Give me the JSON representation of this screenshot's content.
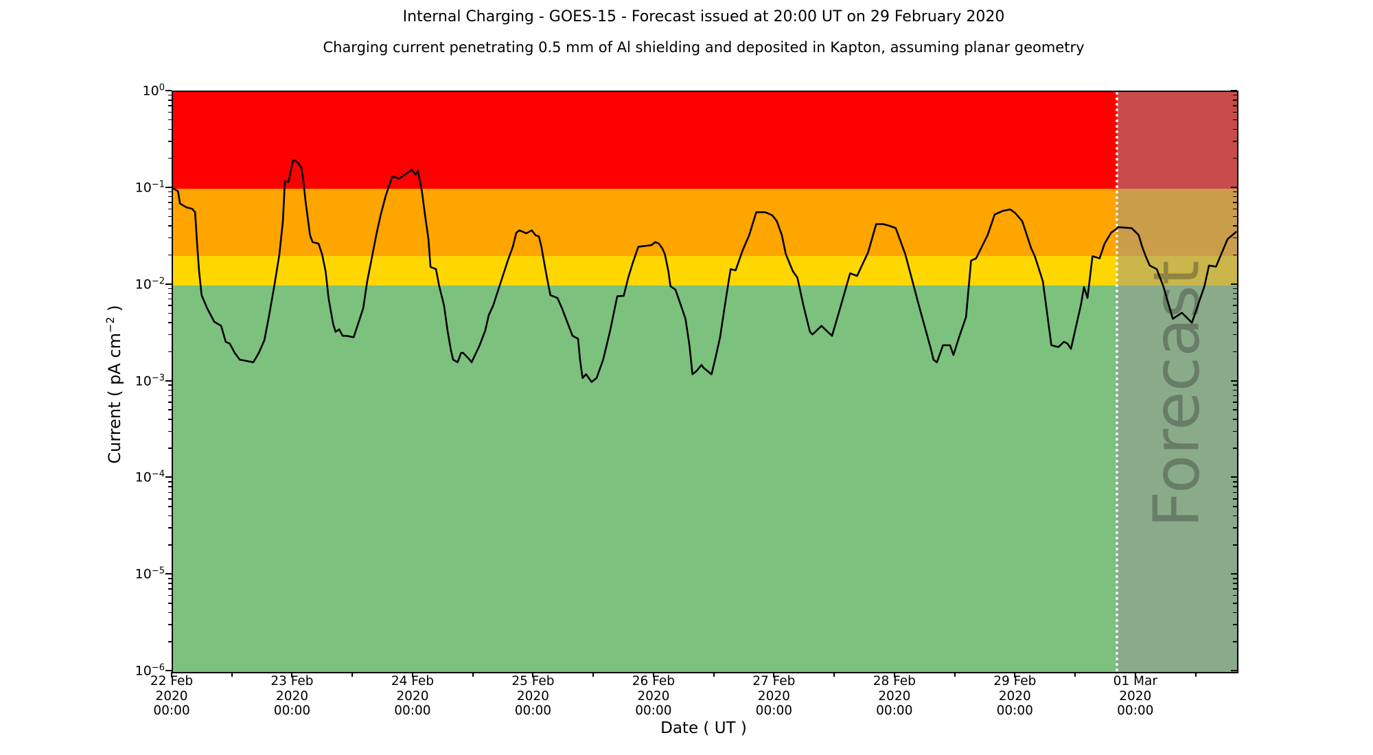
{
  "chart_data": {
    "type": "line",
    "title": "Internal Charging - GOES-15 - Forecast issued at 20:00 UT on 29 February 2020",
    "subtitle": "Charging current penetrating 0.5 mm of Al shielding and deposited in Kapton, assuming planar geometry",
    "xlabel": "Date ( UT )",
    "ylabel": "Current ( pA cm⁻² )",
    "ylabel_parts": {
      "pre": "Current ( pA cm",
      "sup": "−2",
      "post": " )"
    },
    "x_axis": {
      "total_hours": 212,
      "major_tick_every_hours": 24,
      "minor_tick_every_hours": 12,
      "tick_labels": [
        [
          "22 Feb",
          "2020",
          "00:00"
        ],
        [
          "23 Feb",
          "2020",
          "00:00"
        ],
        [
          "24 Feb",
          "2020",
          "00:00"
        ],
        [
          "25 Feb",
          "2020",
          "00:00"
        ],
        [
          "26 Feb",
          "2020",
          "00:00"
        ],
        [
          "27 Feb",
          "2020",
          "00:00"
        ],
        [
          "28 Feb",
          "2020",
          "00:00"
        ],
        [
          "29 Feb",
          "2020",
          "00:00"
        ],
        [
          "01 Mar",
          "2020",
          "00:00"
        ]
      ]
    },
    "y_axis": {
      "scale": "log",
      "min": 1e-06,
      "max": 1,
      "tick_exponents": [
        0,
        -1,
        -2,
        -3,
        -4,
        -5,
        -6
      ],
      "grid": false
    },
    "bands": [
      {
        "label": "red-alert",
        "from": 0.1,
        "to": 1,
        "color": "#ff0000"
      },
      {
        "label": "orange-alert",
        "from": 0.02,
        "to": 0.1,
        "color": "#ffa500"
      },
      {
        "label": "yellow-alert",
        "from": 0.01,
        "to": 0.02,
        "color": "#ffd700"
      },
      {
        "label": "green-safe",
        "from": 1e-06,
        "to": 0.01,
        "color": "#7cc17e"
      }
    ],
    "forecast": {
      "label": "Forecast",
      "start_hours": 188,
      "overlay_color": "rgba(150,150,150,0.5)",
      "divider_style": "white dotted",
      "label_color": "rgba(50,50,50,0.38)"
    },
    "series": [
      {
        "name": "charging-current",
        "color": "#000000",
        "points": [
          [
            0,
            0.101
          ],
          [
            1,
            0.094
          ],
          [
            1.4,
            0.07
          ],
          [
            2.7,
            0.064
          ],
          [
            3.8,
            0.062
          ],
          [
            4.4,
            0.057
          ],
          [
            4.8,
            0.027
          ],
          [
            5.2,
            0.014
          ],
          [
            5.7,
            0.0079
          ],
          [
            6.8,
            0.0058
          ],
          [
            8.2,
            0.0042
          ],
          [
            9.6,
            0.0038
          ],
          [
            10.5,
            0.0026
          ],
          [
            11.3,
            0.0025
          ],
          [
            12.3,
            0.002
          ],
          [
            13.3,
            0.0017
          ],
          [
            16,
            0.0016
          ],
          [
            17.1,
            0.002
          ],
          [
            18.2,
            0.0027
          ],
          [
            19.1,
            0.0047
          ],
          [
            20.2,
            0.01
          ],
          [
            21.2,
            0.021
          ],
          [
            21.9,
            0.046
          ],
          [
            22.3,
            0.119
          ],
          [
            23,
            0.117
          ],
          [
            23.9,
            0.195
          ],
          [
            24.2,
            0.198
          ],
          [
            24.9,
            0.185
          ],
          [
            25.6,
            0.163
          ],
          [
            26,
            0.117
          ],
          [
            26.4,
            0.075
          ],
          [
            27.3,
            0.033
          ],
          [
            27.8,
            0.028
          ],
          [
            29,
            0.027
          ],
          [
            29.7,
            0.021
          ],
          [
            30.4,
            0.014
          ],
          [
            31,
            0.0073
          ],
          [
            31.9,
            0.004
          ],
          [
            32.4,
            0.0033
          ],
          [
            33.1,
            0.0035
          ],
          [
            33.8,
            0.003
          ],
          [
            34.6,
            0.003
          ],
          [
            36,
            0.0029
          ],
          [
            37.9,
            0.0058
          ],
          [
            38.7,
            0.011
          ],
          [
            39.6,
            0.019
          ],
          [
            40.6,
            0.035
          ],
          [
            41.4,
            0.054
          ],
          [
            42.4,
            0.085
          ],
          [
            43.7,
            0.134
          ],
          [
            45.1,
            0.127
          ],
          [
            47.6,
            0.157
          ],
          [
            48.3,
            0.14
          ],
          [
            48.8,
            0.152
          ],
          [
            49.6,
            0.094
          ],
          [
            50.2,
            0.054
          ],
          [
            50.9,
            0.03
          ],
          [
            51.3,
            0.0155
          ],
          [
            52.4,
            0.0147
          ],
          [
            53,
            0.01
          ],
          [
            54,
            0.0062
          ],
          [
            54.7,
            0.0034
          ],
          [
            55.4,
            0.0021
          ],
          [
            55.8,
            0.0017
          ],
          [
            56.7,
            0.0016
          ],
          [
            57.4,
            0.002
          ],
          [
            57.8,
            0.002
          ],
          [
            59.1,
            0.0017
          ],
          [
            59.5,
            0.0016
          ],
          [
            61.1,
            0.0024
          ],
          [
            62.2,
            0.0034
          ],
          [
            62.9,
            0.0049
          ],
          [
            63.8,
            0.0062
          ],
          [
            64.7,
            0.0086
          ],
          [
            65.6,
            0.012
          ],
          [
            66.7,
            0.018
          ],
          [
            67.7,
            0.025
          ],
          [
            68.4,
            0.035
          ],
          [
            69,
            0.037
          ],
          [
            70.4,
            0.0345
          ],
          [
            71.5,
            0.037
          ],
          [
            72.2,
            0.033
          ],
          [
            72.9,
            0.032
          ],
          [
            73.4,
            0.025
          ],
          [
            73.8,
            0.019
          ],
          [
            74.5,
            0.012
          ],
          [
            75.2,
            0.0079
          ],
          [
            76.6,
            0.0074
          ],
          [
            77.5,
            0.0058
          ],
          [
            78.3,
            0.0045
          ],
          [
            79.6,
            0.003
          ],
          [
            80.7,
            0.0028
          ],
          [
            81.1,
            0.0017
          ],
          [
            81.6,
            0.0011
          ],
          [
            82.3,
            0.0012
          ],
          [
            83.4,
            0.001
          ],
          [
            84.4,
            0.0011
          ],
          [
            85.7,
            0.0017
          ],
          [
            87.1,
            0.0034
          ],
          [
            88.5,
            0.0077
          ],
          [
            89.8,
            0.0078
          ],
          [
            90.7,
            0.012
          ],
          [
            91.6,
            0.017
          ],
          [
            92.7,
            0.025
          ],
          [
            95.3,
            0.026
          ],
          [
            96.1,
            0.028
          ],
          [
            96.8,
            0.027
          ],
          [
            97.5,
            0.024
          ],
          [
            98,
            0.021
          ],
          [
            98.7,
            0.014
          ],
          [
            99.1,
            0.0098
          ],
          [
            100.1,
            0.009
          ],
          [
            101.2,
            0.0062
          ],
          [
            102.1,
            0.0045
          ],
          [
            102.9,
            0.0024
          ],
          [
            103.5,
            0.0012
          ],
          [
            104.3,
            0.0013
          ],
          [
            105.3,
            0.0015
          ],
          [
            105.7,
            0.0014
          ],
          [
            107.3,
            0.0012
          ],
          [
            108,
            0.0017
          ],
          [
            109,
            0.0029
          ],
          [
            109.8,
            0.0055
          ],
          [
            110.7,
            0.011
          ],
          [
            111.1,
            0.0147
          ],
          [
            112.1,
            0.0143
          ],
          [
            113.5,
            0.023
          ],
          [
            114.8,
            0.033
          ],
          [
            116.2,
            0.057
          ],
          [
            118,
            0.057
          ],
          [
            119.4,
            0.053
          ],
          [
            120.3,
            0.046
          ],
          [
            121.3,
            0.033
          ],
          [
            122.1,
            0.021
          ],
          [
            123.5,
            0.014
          ],
          [
            124.4,
            0.012
          ],
          [
            125.6,
            0.0062
          ],
          [
            126.9,
            0.0033
          ],
          [
            127.4,
            0.0031
          ],
          [
            129.2,
            0.0038
          ],
          [
            131.3,
            0.003
          ],
          [
            133,
            0.006
          ],
          [
            134.9,
            0.0133
          ],
          [
            136.3,
            0.0125
          ],
          [
            138.5,
            0.022
          ],
          [
            140.1,
            0.043
          ],
          [
            141.5,
            0.043
          ],
          [
            142.9,
            0.041
          ],
          [
            144,
            0.039
          ],
          [
            145.9,
            0.021
          ],
          [
            148.6,
            0.0062
          ],
          [
            151.1,
            0.0021
          ],
          [
            151.5,
            0.0017
          ],
          [
            152.2,
            0.0016
          ],
          [
            153.4,
            0.0024
          ],
          [
            154.8,
            0.0024
          ],
          [
            155.5,
            0.0019
          ],
          [
            156.6,
            0.0029
          ],
          [
            158,
            0.0047
          ],
          [
            159,
            0.018
          ],
          [
            160,
            0.019
          ],
          [
            162.3,
            0.033
          ],
          [
            163.7,
            0.054
          ],
          [
            165.4,
            0.059
          ],
          [
            166.8,
            0.061
          ],
          [
            167.8,
            0.056
          ],
          [
            169.2,
            0.046
          ],
          [
            171,
            0.024
          ],
          [
            171.7,
            0.02
          ],
          [
            173.3,
            0.011
          ],
          [
            175,
            0.0024
          ],
          [
            176.4,
            0.0023
          ],
          [
            177.5,
            0.0026
          ],
          [
            178.2,
            0.0025
          ],
          [
            178.9,
            0.0022
          ],
          [
            180.9,
            0.0063
          ],
          [
            181.5,
            0.0096
          ],
          [
            182.2,
            0.0074
          ],
          [
            183.2,
            0.02
          ],
          [
            184.6,
            0.019
          ],
          [
            185.6,
            0.027
          ],
          [
            186.9,
            0.035
          ],
          [
            187.9,
            0.038
          ],
          [
            188.3,
            0.04
          ],
          [
            191,
            0.039
          ],
          [
            192.4,
            0.033
          ],
          [
            193.1,
            0.025
          ],
          [
            193.8,
            0.02
          ],
          [
            194.6,
            0.016
          ],
          [
            196,
            0.0147
          ],
          [
            197.3,
            0.0098
          ],
          [
            199.2,
            0.0045
          ],
          [
            201,
            0.0052
          ],
          [
            203,
            0.0041
          ],
          [
            205.5,
            0.0098
          ],
          [
            206.4,
            0.016
          ],
          [
            207.8,
            0.0156
          ],
          [
            210.1,
            0.03
          ],
          [
            211.9,
            0.036
          ]
        ]
      }
    ]
  }
}
